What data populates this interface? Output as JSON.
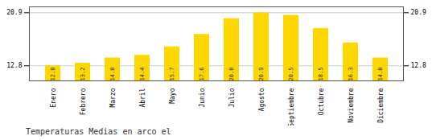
{
  "chart_data": {
    "type": "bar",
    "title": "Temperaturas Medias en arco el",
    "categories": [
      "Enero",
      "Febrero",
      "Marzo",
      "Abril",
      "Mayo",
      "Junio",
      "Julio",
      "Agosto",
      "Septiembre",
      "Octubre",
      "Noviembre",
      "Diciembre"
    ],
    "values": [
      12.8,
      13.2,
      14.0,
      14.4,
      15.7,
      17.6,
      20.0,
      20.9,
      20.5,
      18.5,
      16.3,
      14.0
    ],
    "value_labels": [
      "12.8",
      "13.2",
      "14.0",
      "14.4",
      "15.7",
      "17.6",
      "20.0",
      "20.9",
      "20.5",
      "18.5",
      "16.3",
      "14.0"
    ],
    "color": "#FFD700",
    "ylim": [
      10.5,
      21.8
    ],
    "yticks": [
      12.8,
      20.9
    ],
    "grid": true,
    "data_labels": true
  }
}
